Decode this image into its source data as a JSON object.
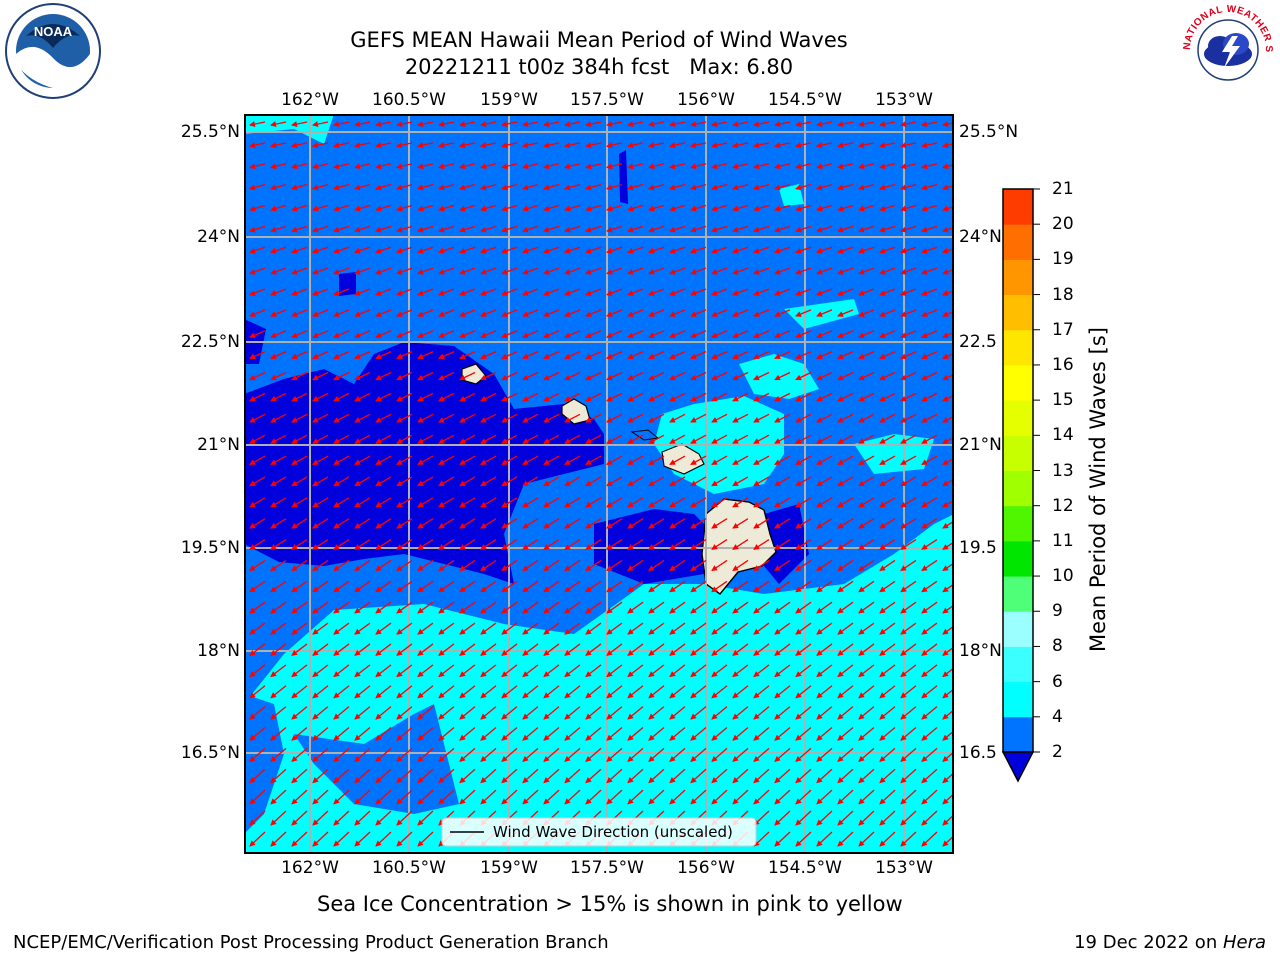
{
  "title": {
    "line1": "GEFS MEAN Hawaii Mean Period of Wind Waves",
    "line2": "20221211 t00z 384h fcst   Max: 6.80"
  },
  "logos": {
    "left": {
      "icon": "noaa-logo-icon",
      "text": "NOAA"
    },
    "right": {
      "icon": "nws-logo-icon",
      "ring_text": "NATIONAL WEATHER SERVICE"
    }
  },
  "map": {
    "lon_ticks": [
      "162°W",
      "160.5°W",
      "159°W",
      "157.5°W",
      "156°W",
      "154.5°W",
      "153°W"
    ],
    "lat_ticks": [
      "25.5°N",
      "24°N",
      "22.5°N",
      "21°N",
      "19.5°N",
      "18°N",
      "16.5°N"
    ],
    "lat_ticks_right": [
      "25.5°N",
      "24°N",
      "22.5",
      "21°N",
      "19.5",
      "18°N",
      "16.5"
    ],
    "extent": {
      "lon_min": -163.0,
      "lon_max": -152.0,
      "lat_min": 15.3,
      "lat_max": 25.8
    },
    "legend_label": "Wind Wave Direction (unscaled)",
    "colors": {
      "lt2": "#0000dc",
      "2-4": "#0073ff",
      "4-6": "#00ffff",
      "land": "#eeead8",
      "arrows": "#ff0000"
    }
  },
  "colorbar": {
    "label": "Mean Period of Wind Waves [s]",
    "ticks": [
      "2",
      "4",
      "6",
      "8",
      "9",
      "10",
      "11",
      "12",
      "13",
      "14",
      "15",
      "16",
      "17",
      "18",
      "19",
      "20",
      "21"
    ],
    "colors": [
      "#0073ff",
      "#00ffff",
      "#3cffff",
      "#9bffff",
      "#50ff78",
      "#00e600",
      "#50f500",
      "#a0ff00",
      "#c8ff00",
      "#e6ff00",
      "#ffff00",
      "#ffe600",
      "#ffbe00",
      "#ff9600",
      "#ff6e00",
      "#ff3c00",
      "#ff0000"
    ],
    "under_color": "#0000dc"
  },
  "subnote": "Sea Ice Concentration > 15% is shown in pink to yellow",
  "footer": {
    "left": "NCEP/EMC/Verification Post Processing Product Generation Branch",
    "right_prefix": "19 Dec 2022 on ",
    "right_machine": "Hera"
  }
}
